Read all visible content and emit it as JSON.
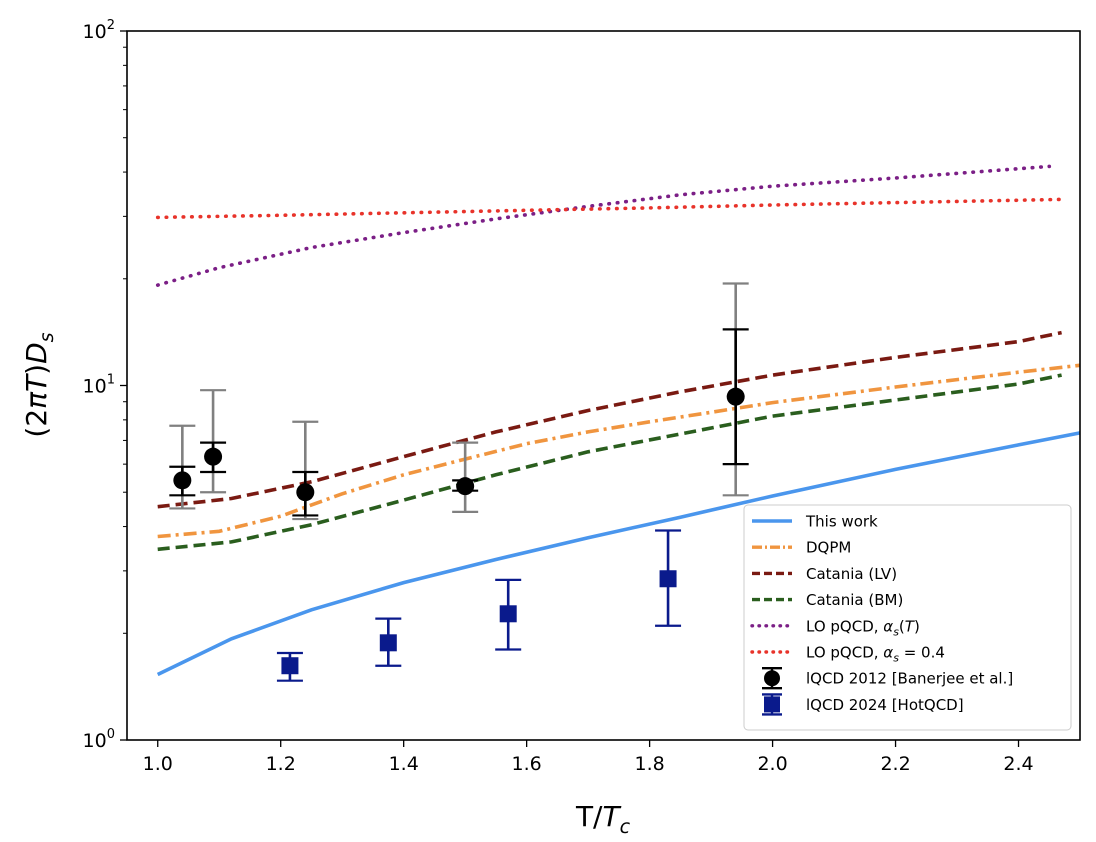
{
  "chart_data": {
    "type": "line",
    "xlabel": "T/T_c",
    "ylabel": "(2πT)D_s",
    "xlim": [
      0.95,
      2.5
    ],
    "ylim": [
      1,
      100
    ],
    "yscale": "log",
    "x_ticks": [
      1.0,
      1.2,
      1.4,
      1.6,
      1.8,
      2.0,
      2.2,
      2.4
    ],
    "x_tick_labels": [
      "1.0",
      "1.2",
      "1.4",
      "1.6",
      "1.8",
      "2.0",
      "2.2",
      "2.4"
    ],
    "y_ticks": [
      1,
      10,
      100
    ],
    "y_tick_labels": [
      {
        "base": "10",
        "exp": "0"
      },
      {
        "base": "10",
        "exp": "1"
      },
      {
        "base": "10",
        "exp": "2"
      }
    ],
    "legend_position": "lower-right",
    "series": [
      {
        "name": "This work",
        "style": "solid",
        "color": "#4a96ed",
        "x": [
          1.0,
          1.12,
          1.25,
          1.4,
          1.55,
          1.7,
          1.85,
          2.0,
          2.2,
          2.4,
          2.5
        ],
        "y": [
          1.53,
          1.93,
          2.33,
          2.78,
          3.23,
          3.72,
          4.25,
          4.88,
          5.8,
          6.8,
          7.35
        ]
      },
      {
        "name": "DQPM",
        "style": "dashdot",
        "color": "#f0953f",
        "x": [
          1.0,
          1.1,
          1.2,
          1.3,
          1.4,
          1.5,
          1.6,
          1.7,
          1.8,
          1.9,
          2.0,
          2.2,
          2.4,
          2.5
        ],
        "y": [
          3.75,
          3.88,
          4.28,
          4.95,
          5.6,
          6.2,
          6.85,
          7.4,
          7.9,
          8.4,
          8.95,
          9.9,
          10.9,
          11.4
        ]
      },
      {
        "name": "Catania (LV)",
        "style": "dashed",
        "color": "#7a1a12",
        "x": [
          1.0,
          1.12,
          1.25,
          1.4,
          1.55,
          1.7,
          1.85,
          2.0,
          2.2,
          2.4,
          2.47
        ],
        "y": [
          4.55,
          4.8,
          5.35,
          6.3,
          7.4,
          8.5,
          9.6,
          10.7,
          12.0,
          13.3,
          14.1
        ]
      },
      {
        "name": "Catania (BM)",
        "style": "dashed",
        "color": "#2a5e1e",
        "x": [
          1.0,
          1.12,
          1.25,
          1.4,
          1.55,
          1.7,
          1.85,
          2.0,
          2.2,
          2.4,
          2.47
        ],
        "y": [
          3.45,
          3.62,
          4.05,
          4.75,
          5.6,
          6.5,
          7.3,
          8.2,
          9.1,
          10.1,
          10.7
        ]
      },
      {
        "name": "LO pQCD, α_s(T)",
        "style": "dotted",
        "color": "#7b1f86",
        "x": [
          1.0,
          1.1,
          1.25,
          1.4,
          1.55,
          1.7,
          1.85,
          2.0,
          2.2,
          2.45
        ],
        "y": [
          19.2,
          21.5,
          24.5,
          27.0,
          29.5,
          32.0,
          34.5,
          36.5,
          38.5,
          41.5
        ]
      },
      {
        "name": "LO pQCD, α_s = 0.4",
        "style": "dotted",
        "color": "#e8332a",
        "x": [
          1.0,
          1.2,
          1.4,
          1.6,
          1.8,
          2.0,
          2.2,
          2.47
        ],
        "y": [
          29.8,
          30.2,
          30.7,
          31.2,
          31.7,
          32.3,
          32.8,
          33.5
        ]
      }
    ],
    "errorbar_series": [
      {
        "name": "lQCD 2012 [Banerjee et al.]",
        "marker": "circle",
        "color": "#000000",
        "outer_color": "#808080",
        "points": [
          {
            "x": 1.04,
            "y": 5.4,
            "inner": [
              4.9,
              5.9
            ],
            "outer": [
              4.5,
              7.7
            ]
          },
          {
            "x": 1.09,
            "y": 6.3,
            "inner": [
              5.7,
              6.9
            ],
            "outer": [
              5.0,
              9.7
            ]
          },
          {
            "x": 1.24,
            "y": 5.0,
            "inner": [
              4.3,
              5.7
            ],
            "outer": [
              4.2,
              7.9
            ]
          },
          {
            "x": 1.5,
            "y": 5.2,
            "inner": [
              5.05,
              5.4
            ],
            "outer": [
              4.4,
              6.9
            ]
          },
          {
            "x": 1.94,
            "y": 9.3,
            "inner": [
              6.0,
              14.4
            ],
            "outer": [
              4.9,
              19.4
            ]
          }
        ]
      },
      {
        "name": "lQCD 2024 [HotQCD]",
        "marker": "square",
        "color": "#0a1a8c",
        "points": [
          {
            "x": 1.215,
            "y": 1.62,
            "inner": [
              1.47,
              1.76
            ]
          },
          {
            "x": 1.375,
            "y": 1.88,
            "inner": [
              1.62,
              2.2
            ]
          },
          {
            "x": 1.57,
            "y": 2.27,
            "inner": [
              1.8,
              2.83
            ]
          },
          {
            "x": 1.83,
            "y": 2.85,
            "inner": [
              2.1,
              3.9
            ]
          }
        ]
      }
    ]
  }
}
